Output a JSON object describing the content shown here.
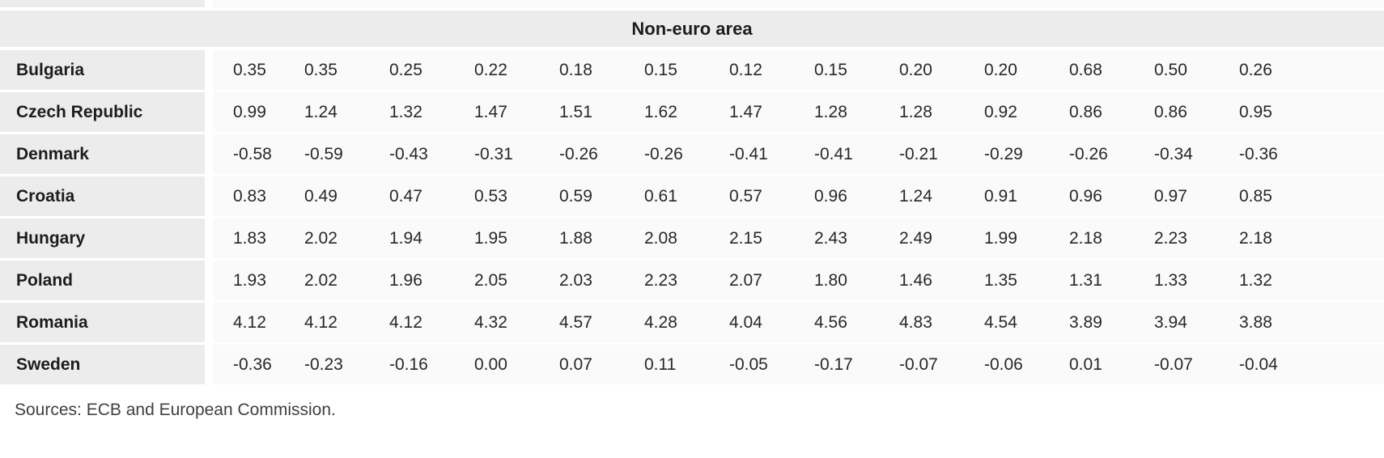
{
  "table": {
    "header": "Non-euro area",
    "num_value_columns": 13,
    "rows": [
      {
        "country": "Bulgaria",
        "values": [
          "0.35",
          "0.35",
          "0.25",
          "0.22",
          "0.18",
          "0.15",
          "0.12",
          "0.15",
          "0.20",
          "0.20",
          "0.68",
          "0.50",
          "0.26"
        ]
      },
      {
        "country": "Czech Republic",
        "values": [
          "0.99",
          "1.24",
          "1.32",
          "1.47",
          "1.51",
          "1.62",
          "1.47",
          "1.28",
          "1.28",
          "0.92",
          "0.86",
          "0.86",
          "0.95"
        ]
      },
      {
        "country": "Denmark",
        "values": [
          "-0.58",
          "-0.59",
          "-0.43",
          "-0.31",
          "-0.26",
          "-0.26",
          "-0.41",
          "-0.41",
          "-0.21",
          "-0.29",
          "-0.26",
          "-0.34",
          "-0.36"
        ]
      },
      {
        "country": "Croatia",
        "values": [
          "0.83",
          "0.49",
          "0.47",
          "0.53",
          "0.59",
          "0.61",
          "0.57",
          "0.96",
          "1.24",
          "0.91",
          "0.96",
          "0.97",
          "0.85"
        ]
      },
      {
        "country": "Hungary",
        "values": [
          "1.83",
          "2.02",
          "1.94",
          "1.95",
          "1.88",
          "2.08",
          "2.15",
          "2.43",
          "2.49",
          "1.99",
          "2.18",
          "2.23",
          "2.18"
        ]
      },
      {
        "country": "Poland",
        "values": [
          "1.93",
          "2.02",
          "1.96",
          "2.05",
          "2.03",
          "2.23",
          "2.07",
          "1.80",
          "1.46",
          "1.35",
          "1.31",
          "1.33",
          "1.32"
        ]
      },
      {
        "country": "Romania",
        "values": [
          "4.12",
          "4.12",
          "4.12",
          "4.32",
          "4.57",
          "4.28",
          "4.04",
          "4.56",
          "4.83",
          "4.54",
          "3.89",
          "3.94",
          "3.88"
        ]
      },
      {
        "country": "Sweden",
        "values": [
          "-0.36",
          "-0.23",
          "-0.16",
          "0.00",
          "0.07",
          "0.11",
          "-0.05",
          "-0.17",
          "-0.07",
          "-0.06",
          "0.01",
          "-0.07",
          "-0.04"
        ]
      }
    ]
  },
  "footer": {
    "sources_note": "Sources: ECB and European Commission."
  },
  "colors": {
    "header_bg": "#ececec",
    "row_label_bg": "#ececec",
    "value_cell_bg": "#fafafa",
    "separator": "#ffffff",
    "text_primary": "#1d1d1d",
    "text_value": "#282828",
    "text_sources": "#3f3f3f"
  }
}
